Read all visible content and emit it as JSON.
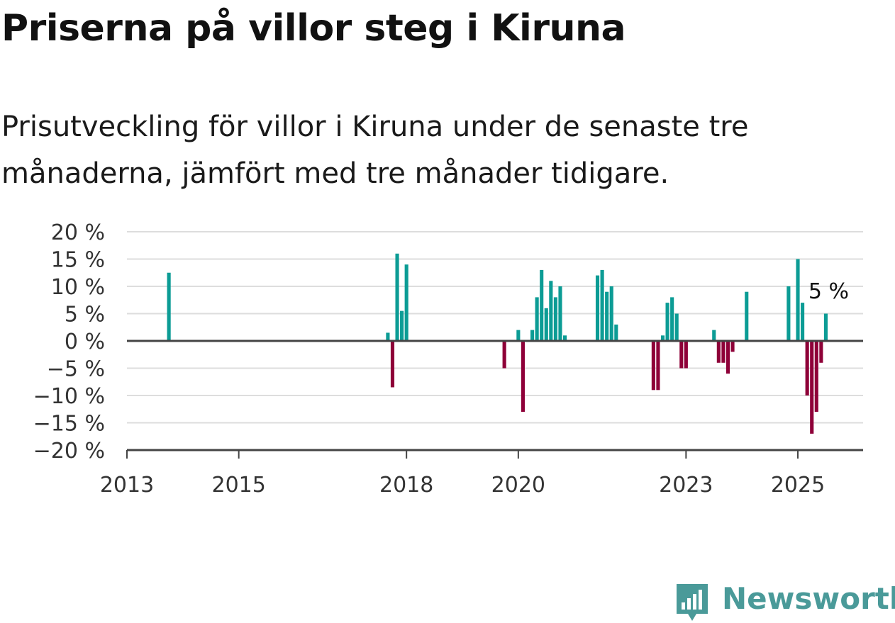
{
  "title": "Priserna på villor steg i Kiruna",
  "subtitle": "Prisutveckling för villor i Kiruna under de senaste tre månaderna, jämfört med tre månader tidigare.",
  "brand": "Newsworthy",
  "colors": {
    "positive": "#0c9c95",
    "negative": "#8e0038",
    "grid": "#dddddd",
    "axis": "#444444",
    "brand": "#4a9a99"
  },
  "chart_data": {
    "type": "bar",
    "title": "Priserna på villor steg i Kiruna",
    "subtitle": "Prisutveckling för villor i Kiruna under de senaste tre månaderna, jämfört med tre månader tidigare.",
    "xlabel": "",
    "ylabel": "",
    "ylim": [
      -20,
      20
    ],
    "xlim": [
      "2013-01",
      "2026-03"
    ],
    "y_ticks": [
      20,
      15,
      10,
      5,
      0,
      -5,
      -10,
      -15,
      -20
    ],
    "y_tick_labels": [
      "20 %",
      "15 %",
      "10 %",
      "5 %",
      "0 %",
      "−5 %",
      "−10 %",
      "−15 %",
      "−20 %"
    ],
    "x_ticks": [
      "2013-01",
      "2015-01",
      "2018-01",
      "2020-01",
      "2023-01",
      "2025-01"
    ],
    "x_tick_labels": [
      "2013",
      "2015",
      "2018",
      "2020",
      "2023",
      "2025"
    ],
    "grid": true,
    "annotation": "5 %",
    "series": [
      {
        "points": [
          {
            "x": "2013-10",
            "y": 12.5
          },
          {
            "x": "2017-09",
            "y": 1.5
          },
          {
            "x": "2017-10",
            "y": -8.5
          },
          {
            "x": "2017-11",
            "y": 16
          },
          {
            "x": "2017-12",
            "y": 5.5
          },
          {
            "x": "2018-01",
            "y": 14
          },
          {
            "x": "2019-10",
            "y": -5
          },
          {
            "x": "2020-01",
            "y": 2
          },
          {
            "x": "2020-02",
            "y": -13
          },
          {
            "x": "2020-04",
            "y": 2
          },
          {
            "x": "2020-05",
            "y": 8
          },
          {
            "x": "2020-06",
            "y": 13
          },
          {
            "x": "2020-07",
            "y": 6
          },
          {
            "x": "2020-08",
            "y": 11
          },
          {
            "x": "2020-09",
            "y": 8
          },
          {
            "x": "2020-10",
            "y": 10
          },
          {
            "x": "2020-11",
            "y": 1
          },
          {
            "x": "2021-06",
            "y": 12
          },
          {
            "x": "2021-07",
            "y": 13
          },
          {
            "x": "2021-08",
            "y": 9
          },
          {
            "x": "2021-09",
            "y": 10
          },
          {
            "x": "2021-10",
            "y": 3
          },
          {
            "x": "2022-06",
            "y": -9
          },
          {
            "x": "2022-07",
            "y": -9
          },
          {
            "x": "2022-08",
            "y": 1
          },
          {
            "x": "2022-09",
            "y": 7
          },
          {
            "x": "2022-10",
            "y": 8
          },
          {
            "x": "2022-11",
            "y": 5
          },
          {
            "x": "2022-12",
            "y": -5
          },
          {
            "x": "2023-01",
            "y": -5
          },
          {
            "x": "2023-07",
            "y": 2
          },
          {
            "x": "2023-08",
            "y": -4
          },
          {
            "x": "2023-09",
            "y": -4
          },
          {
            "x": "2023-10",
            "y": -6
          },
          {
            "x": "2023-11",
            "y": -2
          },
          {
            "x": "2024-02",
            "y": 9
          },
          {
            "x": "2024-11",
            "y": 10
          },
          {
            "x": "2025-01",
            "y": 15
          },
          {
            "x": "2025-02",
            "y": 7
          },
          {
            "x": "2025-03",
            "y": -10
          },
          {
            "x": "2025-04",
            "y": -17
          },
          {
            "x": "2025-05",
            "y": -13
          },
          {
            "x": "2025-06",
            "y": -4
          },
          {
            "x": "2025-07",
            "y": 5
          }
        ]
      }
    ]
  }
}
